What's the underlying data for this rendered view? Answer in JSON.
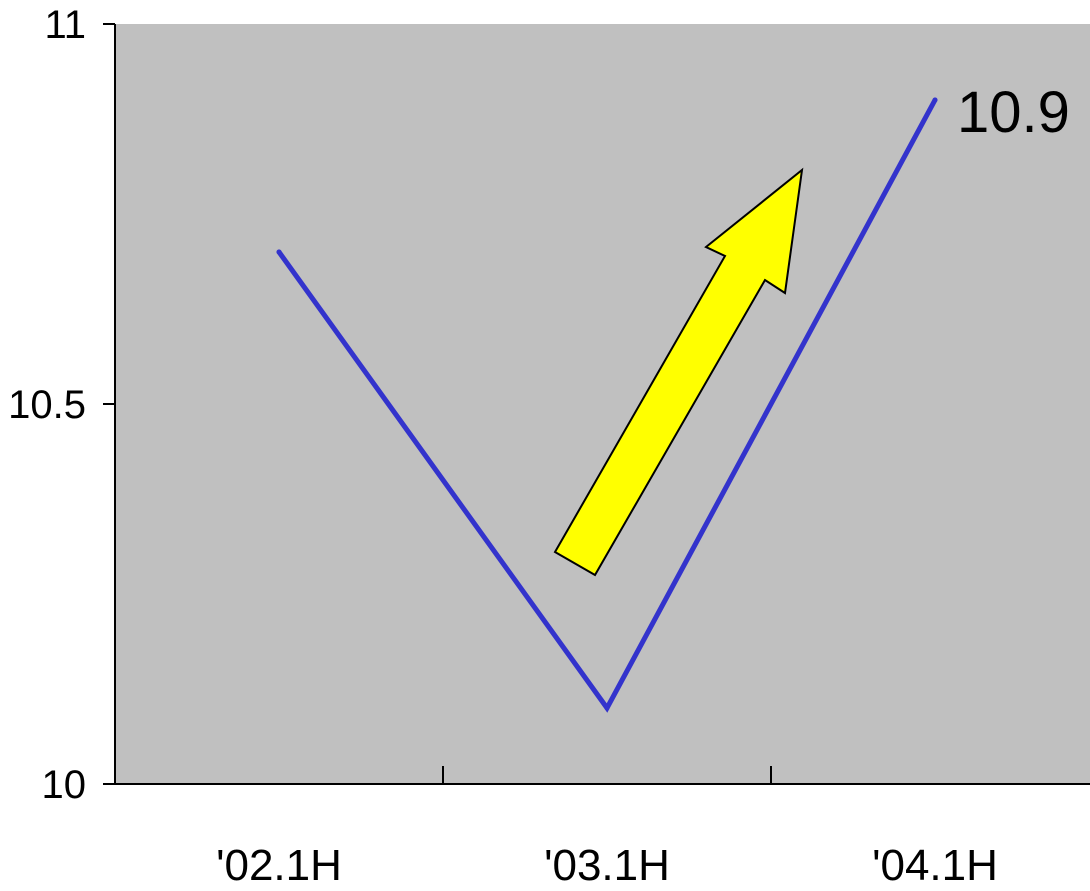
{
  "chart_data": {
    "type": "line",
    "categories": [
      "'02.1H",
      "'03.1H",
      "'04.1H"
    ],
    "series": [
      {
        "values": [
          10.7,
          10.1,
          10.9
        ]
      }
    ],
    "data_labels": [
      "",
      "",
      "10.9"
    ],
    "yticks": [
      "10",
      "10.5",
      "11"
    ],
    "ylim": [
      10,
      11
    ],
    "grid": false,
    "legend": "none"
  },
  "colors": {
    "plot_background": "#c0c0c0",
    "line": "#3333cc",
    "arrow_fill": "#ffff00",
    "arrow_stroke": "#000000"
  },
  "annotations": {
    "trend_arrow": "upward-arrow"
  }
}
